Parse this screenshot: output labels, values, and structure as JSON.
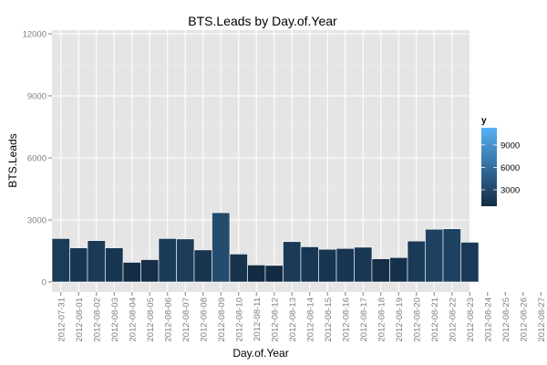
{
  "chart_data": {
    "type": "bar",
    "title": "BTS.Leads by Day.of.Year",
    "xlabel": "Day.of.Year",
    "ylabel": "BTS.Leads",
    "ylim": [
      0,
      12000
    ],
    "yticks": [
      0,
      3000,
      6000,
      9000,
      12000
    ],
    "grid": true,
    "categories": [
      "2012-07-31",
      "2012-08-01",
      "2012-08-02",
      "2012-08-03",
      "2012-08-04",
      "2012-08-05",
      "2012-08-06",
      "2012-08-07",
      "2012-08-08",
      "2012-08-09",
      "2012-08-10",
      "2012-08-11",
      "2012-08-12",
      "2012-08-13",
      "2012-08-14",
      "2012-08-15",
      "2012-08-16",
      "2012-08-17",
      "2012-08-18",
      "2012-08-19",
      "2012-08-20",
      "2012-08-21",
      "2012-08-22",
      "2012-08-23",
      "2012-08-24",
      "2012-08-25",
      "2012-08-26",
      "2012-08-27"
    ],
    "values": [
      2100,
      1650,
      2000,
      1650,
      950,
      1080,
      2100,
      2080,
      1550,
      3350,
      1350,
      820,
      800,
      1950,
      1700,
      1580,
      1620,
      1680,
      1120,
      1180,
      1980,
      2550,
      2570,
      1920,
      null,
      null,
      null,
      null
    ],
    "legend": {
      "title": "y",
      "position": "right",
      "ticks": [
        3000,
        6000,
        9000
      ],
      "color_low": "#132B43",
      "color_high": "#56B1F7",
      "range": [
        800,
        11300
      ]
    },
    "colors": {
      "panel_bg": "#E5E5E5",
      "grid_major": "#FFFFFF",
      "grid_minor": "#F2F2F2",
      "bar_outline": "#FFFFFF",
      "tick_text": "#7F7F7F"
    }
  }
}
